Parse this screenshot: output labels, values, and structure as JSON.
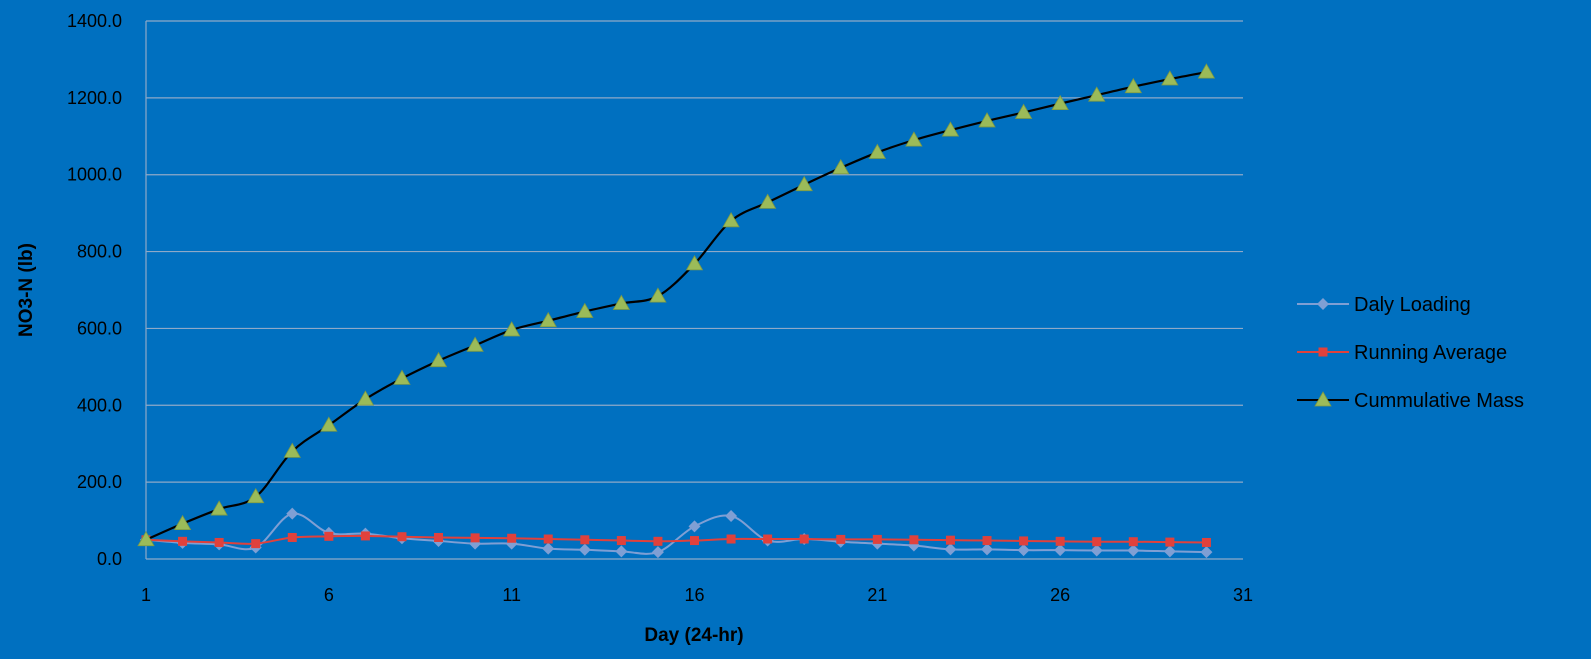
{
  "chart_data": {
    "type": "line",
    "xlabel": "Day (24-hr)",
    "ylabel": "NO3-N (lb)",
    "xlim": [
      1,
      31
    ],
    "ylim": [
      0,
      1400
    ],
    "xticks": [
      1,
      6,
      11,
      16,
      21,
      26,
      31
    ],
    "yticks": [
      0,
      200,
      400,
      600,
      800,
      1000,
      1200,
      1400
    ],
    "ytick_labels": [
      "0.0",
      "200.0",
      "400.0",
      "600.0",
      "800.0",
      "1000.0",
      "1200.0",
      "1400.0"
    ],
    "grid": "horizontal",
    "legend_position": "right",
    "x": [
      1,
      2,
      3,
      4,
      5,
      6,
      7,
      8,
      9,
      10,
      11,
      12,
      13,
      14,
      15,
      16,
      17,
      18,
      19,
      20,
      21,
      22,
      23,
      24,
      25,
      26,
      27,
      28,
      29,
      30
    ],
    "series": [
      {
        "name": "Daly Loading",
        "marker": "diamond",
        "color": "#7F9FD4",
        "values": [
          50,
          42,
          38,
          30,
          118,
          68,
          66,
          54,
          47,
          40,
          40,
          27,
          24,
          20,
          18,
          85,
          112,
          48,
          52,
          45,
          40,
          35,
          25,
          25,
          23,
          23,
          22,
          22,
          20,
          18
        ]
      },
      {
        "name": "Running Average",
        "marker": "square",
        "color": "#E0413C",
        "values": [
          50,
          46,
          43,
          40,
          56,
          59,
          60,
          58,
          56,
          55,
          54,
          52,
          50,
          48,
          46,
          48,
          52,
          52,
          52,
          51,
          51,
          50,
          49,
          48,
          47,
          46,
          45,
          45,
          44,
          43
        ]
      },
      {
        "name": "Cummulative Mass",
        "marker": "triangle",
        "color": "#000000",
        "marker_color": "#9BBB59",
        "values": [
          50,
          92,
          130,
          162,
          280,
          348,
          416,
          470,
          516,
          556,
          596,
          620,
          644,
          665,
          684,
          768,
          880,
          928,
          974,
          1018,
          1058,
          1090,
          1116,
          1140,
          1162,
          1185,
          1207,
          1229,
          1249,
          1267
        ]
      }
    ]
  }
}
